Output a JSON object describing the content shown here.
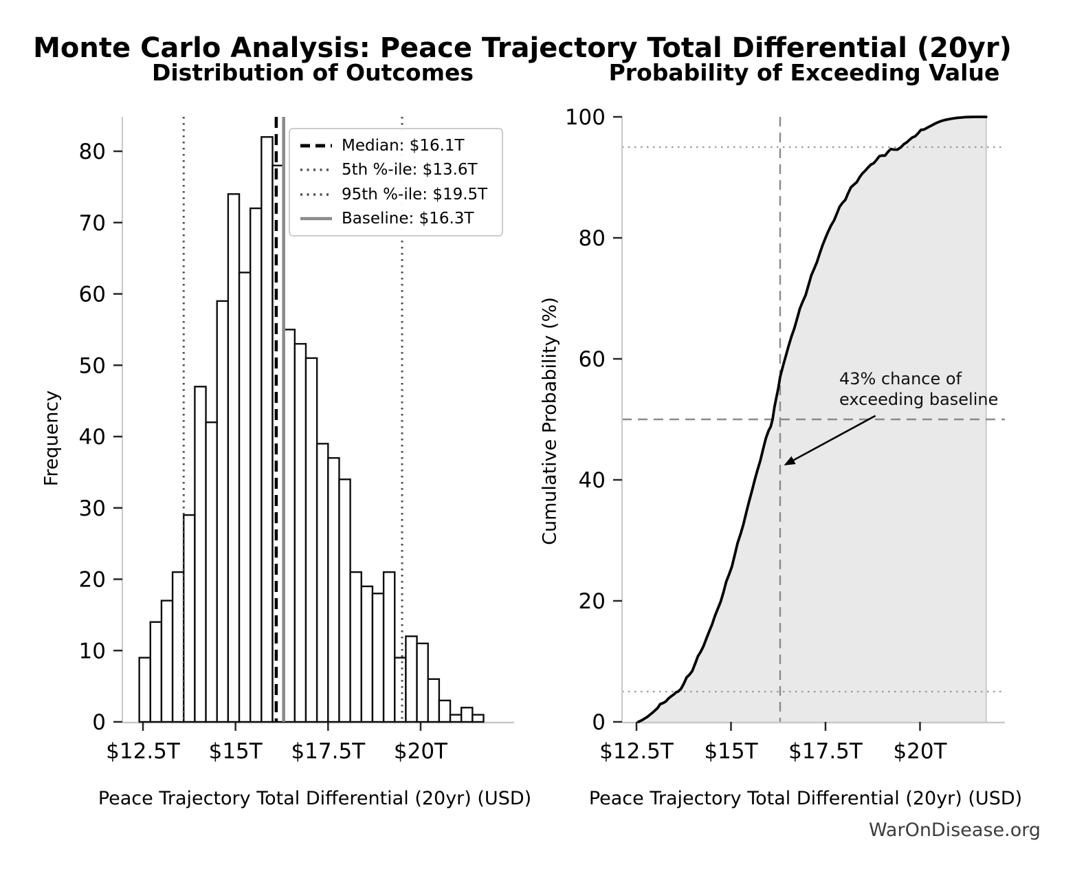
{
  "header": {
    "title": "Monte Carlo Analysis: Peace Trajectory Total Differential (20yr)"
  },
  "watermark": "WarOnDisease.org",
  "chart_data": [
    {
      "type": "bar",
      "subtype": "histogram",
      "title": "Distribution of Outcomes",
      "xlabel": "Peace Trajectory Total Differential (20yr) (USD)",
      "ylabel": "Frequency",
      "bin_start": 12.4,
      "bin_width": 0.3,
      "frequencies": [
        9,
        14,
        17,
        21,
        29,
        47,
        42,
        59,
        74,
        63,
        72,
        82,
        78,
        55,
        53,
        51,
        39,
        37,
        34,
        21,
        19,
        18,
        21,
        9,
        12,
        11,
        6,
        3,
        1,
        2,
        1
      ],
      "total_samples": 1000,
      "bar_fill": "#ffffff",
      "bar_edge": "#0d0d0d",
      "x_ticks": [
        {
          "value": 12.5,
          "label": "$12.5T"
        },
        {
          "value": 15,
          "label": "$15T"
        },
        {
          "value": 17.5,
          "label": "$17.5T"
        },
        {
          "value": 20,
          "label": "$20T"
        }
      ],
      "y_ticks": [
        0,
        10,
        20,
        30,
        40,
        50,
        60,
        70,
        80
      ],
      "ylim": [
        0,
        84.8
      ],
      "xlim": [
        11.95,
        22.5
      ],
      "grid": false,
      "legend_position": "upper right",
      "stat_lines": [
        {
          "label": "Median: $16.1T",
          "value": 16.1,
          "style": "dashed-black",
          "color": "#000000"
        },
        {
          "label": "5th %-ile: $13.6T",
          "value": 13.6,
          "style": "dotted-gray",
          "color": "#4d4d4d"
        },
        {
          "label": "95th %-ile: $19.5T",
          "value": 19.5,
          "style": "dotted-gray",
          "color": "#4d4d4d"
        },
        {
          "label": "Baseline: $16.3T",
          "value": 16.3,
          "style": "solid-gray",
          "color": "#8a8a8a"
        }
      ]
    },
    {
      "type": "line",
      "subtype": "cdf",
      "title": "Probability of Exceeding Value",
      "xlabel": "Peace Trajectory Total Differential (20yr) (USD)",
      "ylabel": "Cumulative Probability (%)",
      "line_color": "#000000",
      "fill_color": "#e9e9e9",
      "x_ticks": [
        {
          "value": 12.5,
          "label": "$12.5T"
        },
        {
          "value": 15,
          "label": "$15T"
        },
        {
          "value": 17.5,
          "label": "$17.5T"
        },
        {
          "value": 20,
          "label": "$20T"
        }
      ],
      "y_ticks": [
        0,
        20,
        40,
        60,
        80,
        100
      ],
      "ylim": [
        0,
        100
      ],
      "xlim": [
        12.12,
        22.2
      ],
      "grid": false,
      "cdf_points": [
        [
          12.55,
          0
        ],
        [
          12.65,
          0.3
        ],
        [
          12.78,
          0.8
        ],
        [
          12.92,
          1.5
        ],
        [
          13.06,
          2.3
        ],
        [
          13.2,
          3.1
        ],
        [
          13.35,
          3.9
        ],
        [
          13.5,
          4.6
        ],
        [
          13.6,
          5
        ],
        [
          13.75,
          6.3
        ],
        [
          13.9,
          7.8
        ],
        [
          14.05,
          9.6
        ],
        [
          14.2,
          11.6
        ],
        [
          14.35,
          13.8
        ],
        [
          14.5,
          16.1
        ],
        [
          14.65,
          18.7
        ],
        [
          14.8,
          21.4
        ],
        [
          14.95,
          24.4
        ],
        [
          15.1,
          27.6
        ],
        [
          15.25,
          31
        ],
        [
          15.4,
          34.5
        ],
        [
          15.55,
          38.1
        ],
        [
          15.7,
          41.6
        ],
        [
          15.85,
          45.1
        ],
        [
          16.0,
          48.2
        ],
        [
          16.1,
          50
        ],
        [
          16.2,
          53.6
        ],
        [
          16.3,
          57
        ],
        [
          16.45,
          60.5
        ],
        [
          16.6,
          63.7
        ],
        [
          16.75,
          66.7
        ],
        [
          16.9,
          69.5
        ],
        [
          17.05,
          72.2
        ],
        [
          17.2,
          74.9
        ],
        [
          17.35,
          77.5
        ],
        [
          17.5,
          80
        ],
        [
          17.65,
          82.1
        ],
        [
          17.8,
          84
        ],
        [
          17.95,
          85.8
        ],
        [
          18.1,
          87.4
        ],
        [
          18.25,
          88.8
        ],
        [
          18.4,
          90
        ],
        [
          18.55,
          91.1
        ],
        [
          18.7,
          92.1
        ],
        [
          18.85,
          92.9
        ],
        [
          19.0,
          93.6
        ],
        [
          19.15,
          94.2
        ],
        [
          19.3,
          94.6
        ],
        [
          19.5,
          95
        ],
        [
          19.65,
          95.8
        ],
        [
          19.8,
          96.6
        ],
        [
          19.95,
          97.3
        ],
        [
          20.1,
          97.9
        ],
        [
          20.25,
          98.4
        ],
        [
          20.4,
          98.9
        ],
        [
          20.55,
          99.3
        ],
        [
          20.7,
          99.55
        ],
        [
          20.85,
          99.72
        ],
        [
          21.0,
          99.85
        ],
        [
          21.2,
          99.95
        ],
        [
          21.45,
          100
        ],
        [
          21.75,
          100
        ]
      ],
      "reference_lines": {
        "horizontal_dotted": [
          5,
          95
        ],
        "horizontal_dashed": [
          50
        ],
        "vertical_dashed": [
          16.3
        ]
      },
      "annotation": {
        "lines": [
          "43% chance of",
          "exceeding baseline"
        ],
        "arrow_from": [
          18.82,
          50.6
        ],
        "arrow_to": [
          16.4,
          42.4
        ]
      }
    }
  ]
}
